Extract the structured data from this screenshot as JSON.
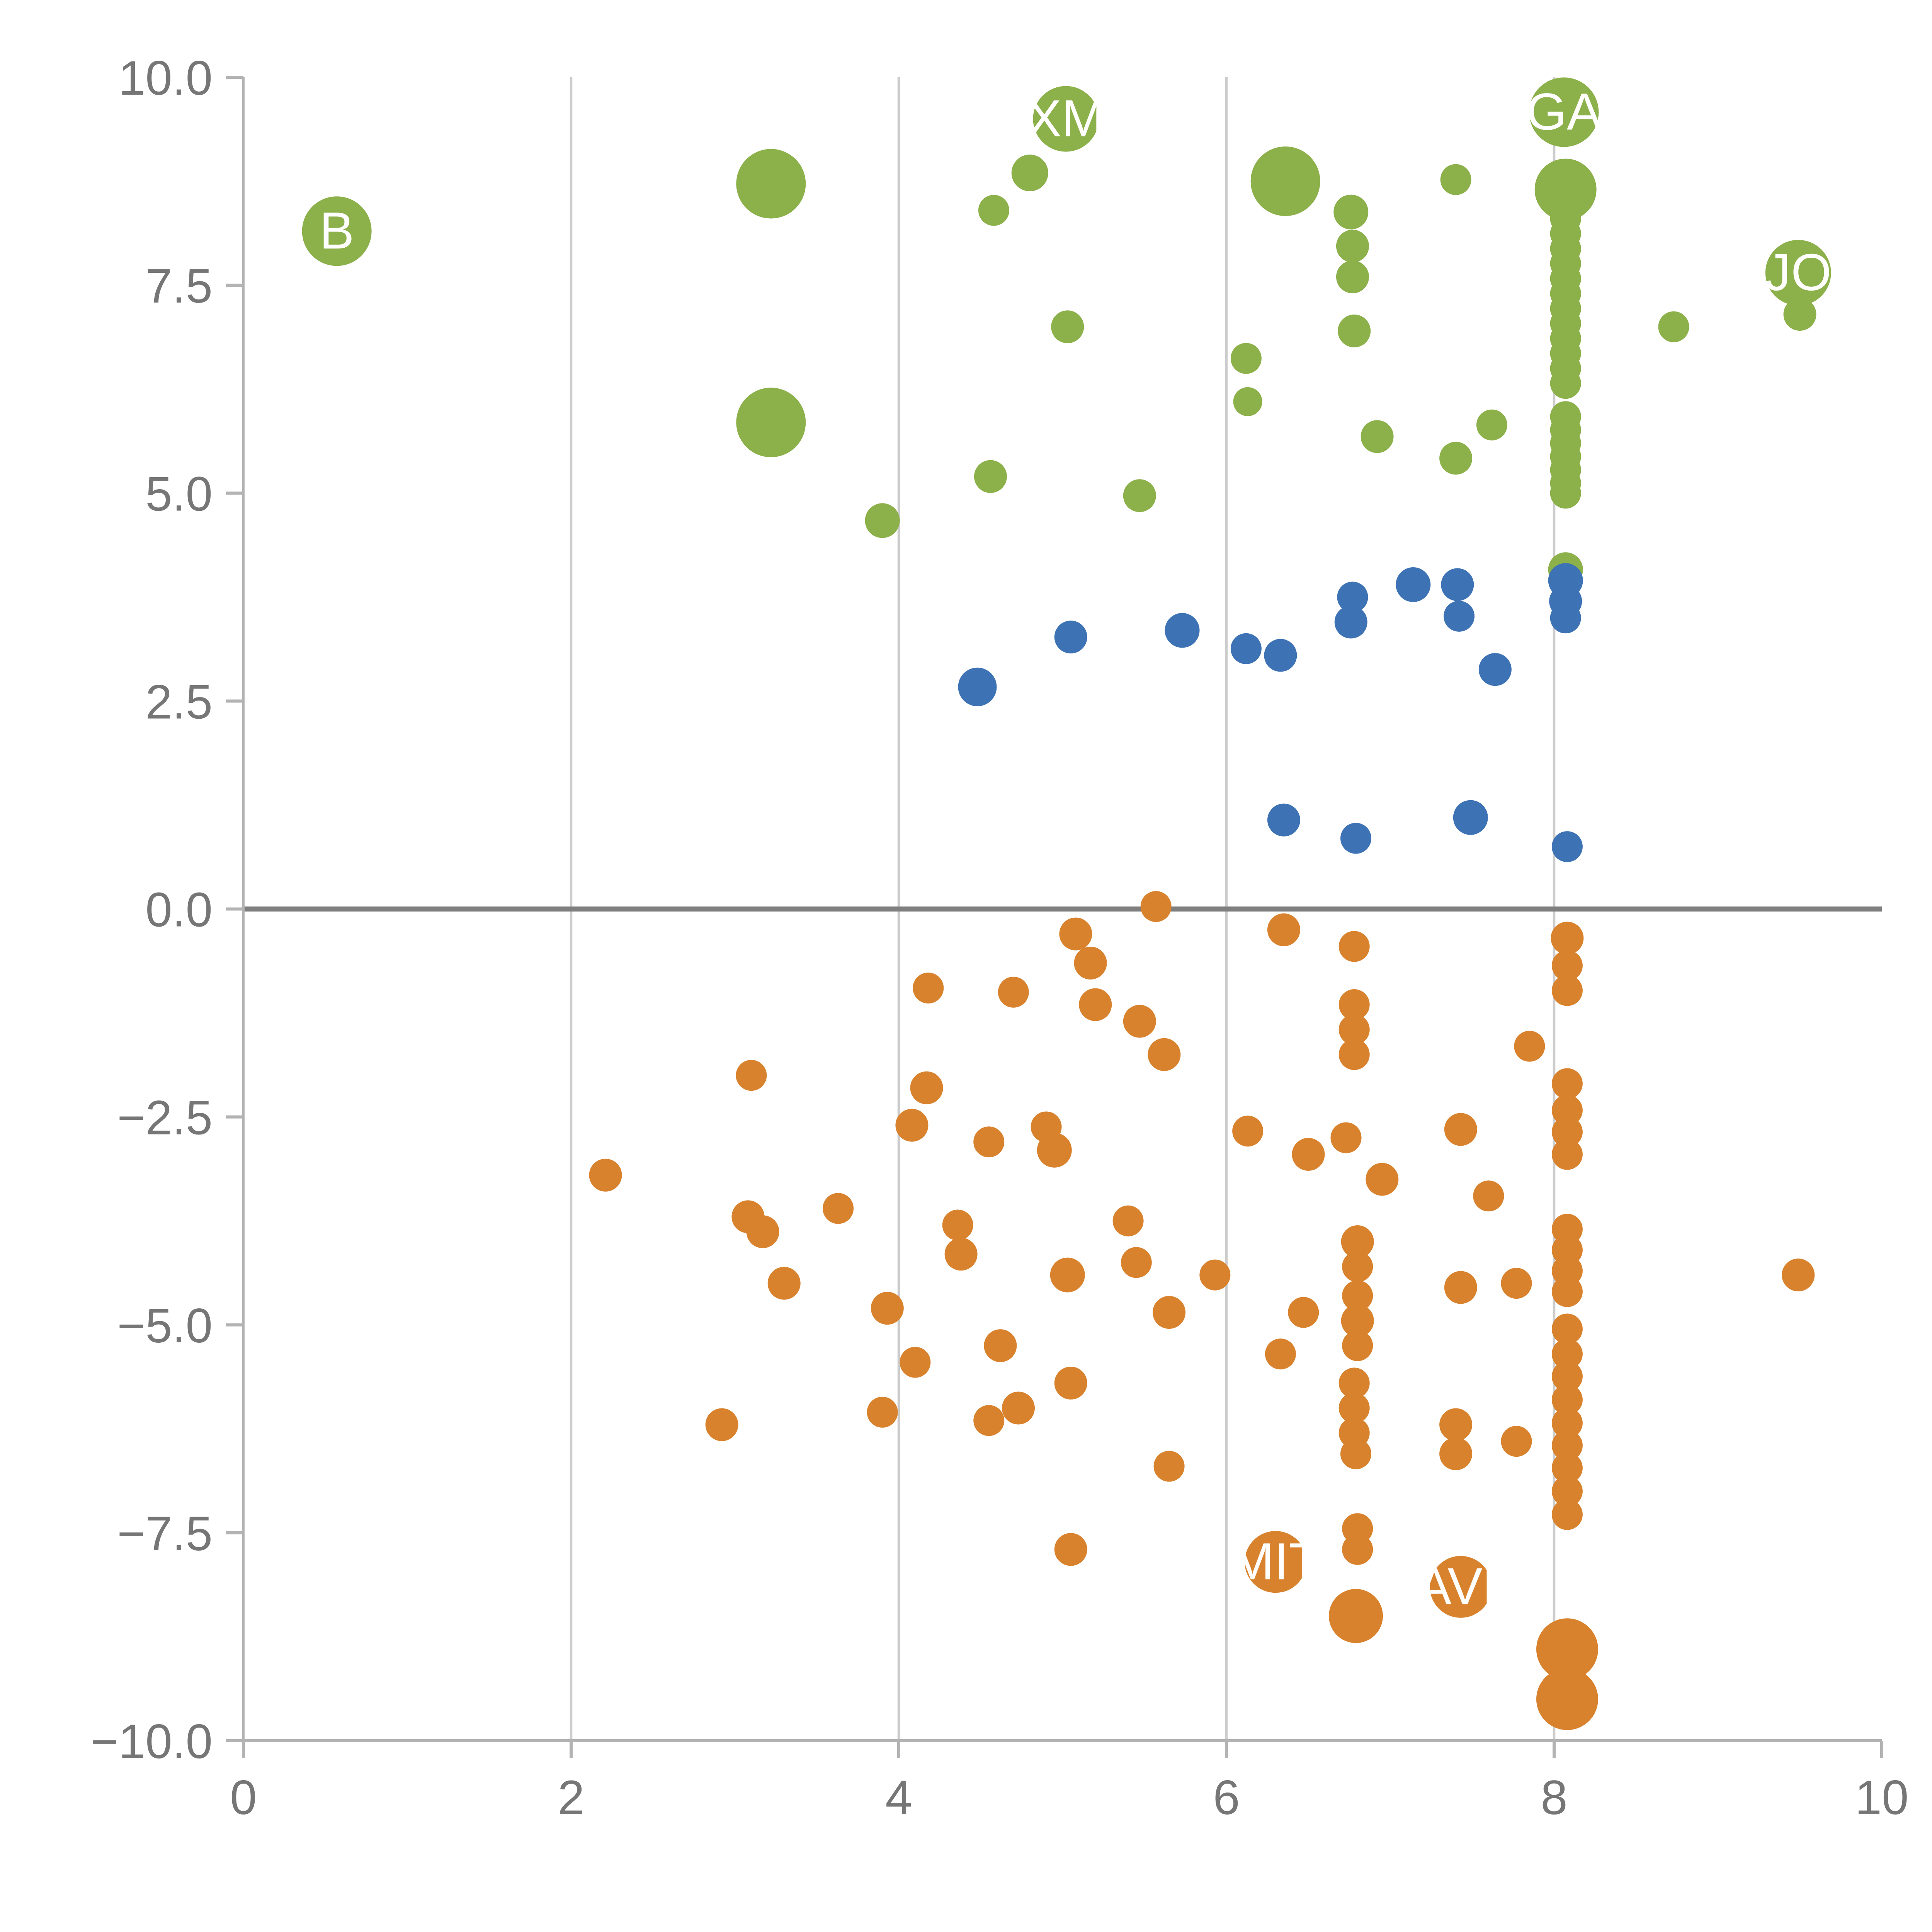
{
  "chart_data": {
    "type": "scatter",
    "title": "",
    "xlabel": "",
    "ylabel": "",
    "xlim": [
      0,
      10
    ],
    "ylim": [
      -10,
      10
    ],
    "x_ticks": [
      0,
      2,
      4,
      6,
      8,
      10
    ],
    "x_tick_labels": [
      "0",
      "2",
      "4",
      "6",
      "8",
      "10"
    ],
    "y_ticks": [
      10,
      7.5,
      5,
      2.5,
      0,
      -2.5,
      -5,
      -7.5,
      -10
    ],
    "y_tick_labels": [
      "10.0",
      "7.5",
      "5.0",
      "2.5",
      "0.0",
      "−2.5",
      "−5.0",
      "−7.5",
      "−10.0"
    ],
    "gridlines_x": [
      2,
      4,
      6,
      8
    ],
    "zero_line_y": 0,
    "legend": "none",
    "grid_on": true,
    "colors": {
      "grid": "#cccccc",
      "zero_line": "#7f7f7f",
      "axis": "#b3b3b3",
      "tick_label": "#767676",
      "bubble_label": "#ffffff"
    },
    "series": [
      {
        "name": "green",
        "color": "#8CB04A",
        "points": [
          [
            0.57,
            8.15,
            18,
            "B"
          ],
          [
            3.22,
            8.72,
            18,
            ""
          ],
          [
            3.22,
            5.85,
            18,
            ""
          ],
          [
            3.9,
            4.67,
            9,
            ""
          ],
          [
            4.56,
            5.2,
            8.5,
            ""
          ],
          [
            4.58,
            8.4,
            8,
            ""
          ],
          [
            4.8,
            8.85,
            9.5,
            ""
          ],
          [
            5.02,
            9.5,
            17,
            "XM"
          ],
          [
            5.03,
            7.0,
            8.5,
            ""
          ],
          [
            5.47,
            4.97,
            8.5,
            ""
          ],
          [
            6.12,
            6.62,
            8,
            ""
          ],
          [
            6.13,
            6.1,
            7.5,
            ""
          ],
          [
            6.36,
            8.75,
            18,
            ""
          ],
          [
            6.76,
            8.38,
            9,
            ""
          ],
          [
            6.77,
            7.97,
            8.5,
            ""
          ],
          [
            6.77,
            7.6,
            8.5,
            ""
          ],
          [
            6.78,
            6.95,
            8.5,
            ""
          ],
          [
            6.92,
            5.68,
            8.5,
            ""
          ],
          [
            7.4,
            8.77,
            8,
            ""
          ],
          [
            7.4,
            5.42,
            8.5,
            ""
          ],
          [
            7.62,
            5.82,
            8,
            ""
          ],
          [
            8.06,
            9.58,
            18,
            "GA"
          ],
          [
            8.07,
            8.65,
            16,
            ""
          ],
          [
            8.07,
            8.3,
            8,
            ""
          ],
          [
            8.07,
            8.12,
            8,
            ""
          ],
          [
            8.07,
            7.94,
            8,
            ""
          ],
          [
            8.07,
            7.76,
            8,
            ""
          ],
          [
            8.07,
            7.58,
            8,
            ""
          ],
          [
            8.07,
            7.4,
            8,
            ""
          ],
          [
            8.07,
            7.22,
            8,
            ""
          ],
          [
            8.07,
            7.04,
            8,
            ""
          ],
          [
            8.07,
            6.86,
            8,
            ""
          ],
          [
            8.07,
            6.68,
            8,
            ""
          ],
          [
            8.07,
            6.5,
            8,
            ""
          ],
          [
            8.07,
            6.32,
            8,
            ""
          ],
          [
            8.07,
            5.92,
            8,
            ""
          ],
          [
            8.07,
            5.76,
            8,
            ""
          ],
          [
            8.07,
            5.6,
            8,
            ""
          ],
          [
            8.07,
            5.44,
            8,
            ""
          ],
          [
            8.07,
            5.28,
            8,
            ""
          ],
          [
            8.07,
            5.12,
            8,
            ""
          ],
          [
            8.07,
            5.0,
            8,
            ""
          ],
          [
            8.07,
            4.08,
            9,
            ""
          ],
          [
            8.73,
            7.0,
            8,
            ""
          ],
          [
            9.49,
            7.65,
            17,
            "JO"
          ],
          [
            9.5,
            7.15,
            8.5,
            ""
          ]
        ]
      },
      {
        "name": "blue",
        "color": "#3D72B4",
        "points": [
          [
            4.48,
            2.67,
            10,
            ""
          ],
          [
            5.05,
            3.27,
            8.5,
            ""
          ],
          [
            5.73,
            3.35,
            9,
            ""
          ],
          [
            6.12,
            3.13,
            8,
            ""
          ],
          [
            6.33,
            3.05,
            8.5,
            ""
          ],
          [
            6.35,
            1.07,
            8.5,
            ""
          ],
          [
            6.76,
            3.45,
            8.5,
            ""
          ],
          [
            6.77,
            3.75,
            8,
            ""
          ],
          [
            6.79,
            0.85,
            8,
            ""
          ],
          [
            7.14,
            3.9,
            9,
            ""
          ],
          [
            7.41,
            3.9,
            8.5,
            ""
          ],
          [
            7.42,
            3.52,
            8,
            ""
          ],
          [
            7.49,
            1.1,
            9,
            ""
          ],
          [
            7.64,
            2.88,
            8.5,
            ""
          ],
          [
            8.07,
            3.95,
            9,
            ""
          ],
          [
            8.07,
            3.7,
            8.5,
            ""
          ],
          [
            8.07,
            3.5,
            8,
            ""
          ],
          [
            8.08,
            0.75,
            8,
            ""
          ]
        ]
      },
      {
        "name": "orange",
        "color": "#D9822D",
        "points": [
          [
            5.57,
            0.03,
            8,
            ""
          ],
          [
            5.08,
            -0.3,
            8.5,
            ""
          ],
          [
            6.35,
            -0.25,
            8.5,
            ""
          ],
          [
            6.78,
            -0.45,
            8,
            ""
          ],
          [
            8.08,
            -0.35,
            8.5,
            ""
          ],
          [
            8.08,
            -0.68,
            8,
            ""
          ],
          [
            8.08,
            -0.98,
            8,
            ""
          ],
          [
            5.17,
            -0.65,
            8.5,
            ""
          ],
          [
            4.18,
            -0.95,
            8,
            ""
          ],
          [
            4.7,
            -1.0,
            8,
            ""
          ],
          [
            5.2,
            -1.15,
            8.5,
            ""
          ],
          [
            5.47,
            -1.35,
            8.5,
            ""
          ],
          [
            5.62,
            -1.75,
            8.5,
            ""
          ],
          [
            6.78,
            -1.15,
            8,
            ""
          ],
          [
            6.78,
            -1.45,
            8,
            ""
          ],
          [
            6.78,
            -1.75,
            8,
            ""
          ],
          [
            7.85,
            -1.65,
            8,
            ""
          ],
          [
            3.1,
            -2.0,
            8,
            ""
          ],
          [
            4.17,
            -2.15,
            8.5,
            ""
          ],
          [
            8.08,
            -2.1,
            8,
            ""
          ],
          [
            8.08,
            -2.42,
            8,
            ""
          ],
          [
            8.08,
            -2.68,
            8,
            ""
          ],
          [
            8.08,
            -2.95,
            8,
            ""
          ],
          [
            4.08,
            -2.6,
            8.5,
            ""
          ],
          [
            4.55,
            -2.8,
            8,
            ""
          ],
          [
            4.9,
            -2.62,
            8,
            ""
          ],
          [
            4.95,
            -2.9,
            9,
            ""
          ],
          [
            6.13,
            -2.67,
            8,
            ""
          ],
          [
            6.5,
            -2.95,
            8.5,
            ""
          ],
          [
            6.73,
            -2.75,
            8,
            ""
          ],
          [
            6.95,
            -3.25,
            8.5,
            ""
          ],
          [
            7.43,
            -2.65,
            8.5,
            ""
          ],
          [
            2.21,
            -3.2,
            8.5,
            ""
          ],
          [
            7.6,
            -3.45,
            8,
            ""
          ],
          [
            3.08,
            -3.7,
            8.5,
            ""
          ],
          [
            3.17,
            -3.88,
            8.5,
            ""
          ],
          [
            3.63,
            -3.6,
            8,
            ""
          ],
          [
            4.36,
            -3.8,
            8,
            ""
          ],
          [
            5.4,
            -3.75,
            8,
            ""
          ],
          [
            6.8,
            -4.0,
            8.5,
            ""
          ],
          [
            6.8,
            -4.3,
            8,
            ""
          ],
          [
            6.8,
            -4.65,
            8,
            ""
          ],
          [
            6.8,
            -4.95,
            8.5,
            ""
          ],
          [
            6.8,
            -5.25,
            8,
            ""
          ],
          [
            8.08,
            -3.85,
            8,
            ""
          ],
          [
            8.08,
            -4.1,
            8,
            ""
          ],
          [
            8.08,
            -4.35,
            8,
            ""
          ],
          [
            8.08,
            -4.6,
            8,
            ""
          ],
          [
            4.38,
            -4.15,
            8.5,
            ""
          ],
          [
            3.3,
            -4.5,
            8.5,
            ""
          ],
          [
            5.03,
            -4.4,
            9,
            ""
          ],
          [
            5.45,
            -4.25,
            8,
            ""
          ],
          [
            5.93,
            -4.4,
            8,
            ""
          ],
          [
            7.43,
            -4.55,
            8.5,
            ""
          ],
          [
            7.77,
            -4.5,
            8,
            ""
          ],
          [
            3.93,
            -4.8,
            8.5,
            ""
          ],
          [
            6.47,
            -4.85,
            8,
            ""
          ],
          [
            5.65,
            -4.85,
            8.5,
            ""
          ],
          [
            9.49,
            -4.4,
            8.5,
            ""
          ],
          [
            4.62,
            -5.25,
            8.5,
            ""
          ],
          [
            4.1,
            -5.45,
            8,
            ""
          ],
          [
            6.33,
            -5.35,
            8,
            ""
          ],
          [
            8.08,
            -5.05,
            8,
            ""
          ],
          [
            8.08,
            -5.35,
            8,
            ""
          ],
          [
            8.08,
            -5.62,
            8,
            ""
          ],
          [
            8.08,
            -5.9,
            8,
            ""
          ],
          [
            5.05,
            -5.7,
            8.5,
            ""
          ],
          [
            4.73,
            -6.0,
            8.5,
            ""
          ],
          [
            4.55,
            -6.15,
            8,
            ""
          ],
          [
            3.9,
            -6.05,
            8,
            ""
          ],
          [
            2.92,
            -6.2,
            8.5,
            ""
          ],
          [
            6.78,
            -5.7,
            8,
            ""
          ],
          [
            6.78,
            -6.0,
            8,
            ""
          ],
          [
            6.78,
            -6.3,
            8,
            ""
          ],
          [
            6.79,
            -6.55,
            8,
            ""
          ],
          [
            7.4,
            -6.2,
            8.5,
            ""
          ],
          [
            7.4,
            -6.55,
            8.5,
            ""
          ],
          [
            7.77,
            -6.4,
            8,
            ""
          ],
          [
            5.65,
            -6.7,
            8,
            ""
          ],
          [
            8.08,
            -6.18,
            8,
            ""
          ],
          [
            8.08,
            -6.45,
            8,
            ""
          ],
          [
            8.08,
            -6.72,
            8,
            ""
          ],
          [
            8.08,
            -7.0,
            8,
            ""
          ],
          [
            8.08,
            -7.28,
            8,
            ""
          ],
          [
            6.8,
            -7.45,
            8,
            ""
          ],
          [
            6.8,
            -7.7,
            8,
            ""
          ],
          [
            5.05,
            -7.7,
            8.5,
            ""
          ],
          [
            6.3,
            -7.85,
            16,
            "MIT"
          ],
          [
            6.79,
            -8.5,
            14,
            ""
          ],
          [
            7.43,
            -8.15,
            16,
            "WAVES"
          ],
          [
            8.08,
            -8.9,
            16,
            ""
          ],
          [
            8.08,
            -9.5,
            16,
            ""
          ]
        ]
      }
    ]
  }
}
